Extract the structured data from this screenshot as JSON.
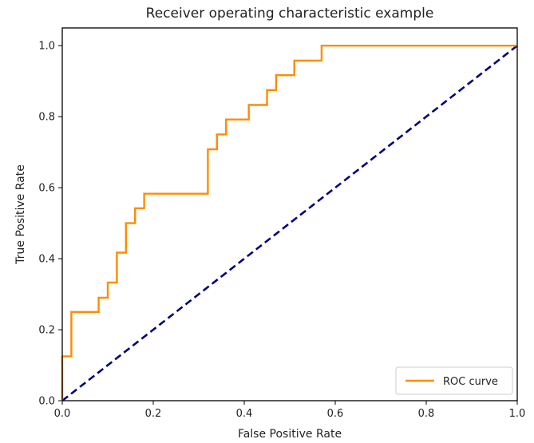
{
  "chart_data": {
    "type": "line",
    "title": "Receiver operating characteristic example",
    "xlabel": "False Positive Rate",
    "ylabel": "True Positive Rate",
    "xlim": [
      0.0,
      1.0
    ],
    "ylim": [
      0.0,
      1.05
    ],
    "x_ticks": [
      0.0,
      0.2,
      0.4,
      0.6,
      0.8,
      1.0
    ],
    "y_ticks": [
      0.0,
      0.2,
      0.4,
      0.6,
      0.8,
      1.0
    ],
    "x_tick_labels": [
      "0.0",
      "0.2",
      "0.4",
      "0.6",
      "0.8",
      "1.0"
    ],
    "y_tick_labels": [
      "0.0",
      "0.2",
      "0.4",
      "0.6",
      "0.8",
      "1.0"
    ],
    "grid": false,
    "legend": {
      "position": "lower-right",
      "entries": [
        "ROC curve"
      ]
    },
    "series": [
      {
        "name": "ROC curve",
        "color": "#ff8c00",
        "style": "solid",
        "step": true,
        "x": [
          0.0,
          0.0,
          0.02,
          0.02,
          0.08,
          0.08,
          0.1,
          0.1,
          0.12,
          0.12,
          0.14,
          0.14,
          0.16,
          0.16,
          0.18,
          0.18,
          0.32,
          0.32,
          0.34,
          0.34,
          0.36,
          0.36,
          0.41,
          0.41,
          0.45,
          0.45,
          0.47,
          0.47,
          0.51,
          0.51,
          0.57,
          0.57,
          1.0
        ],
        "y": [
          0.0,
          0.125,
          0.125,
          0.25,
          0.25,
          0.29,
          0.29,
          0.333,
          0.333,
          0.417,
          0.417,
          0.5,
          0.5,
          0.542,
          0.542,
          0.583,
          0.583,
          0.708,
          0.708,
          0.75,
          0.75,
          0.792,
          0.792,
          0.833,
          0.833,
          0.875,
          0.875,
          0.917,
          0.917,
          0.958,
          0.958,
          1.0,
          1.0
        ]
      },
      {
        "name": "",
        "color": "#000080",
        "style": "dashed",
        "x": [
          0.0,
          1.0
        ],
        "y": [
          0.0,
          1.0
        ]
      }
    ]
  }
}
